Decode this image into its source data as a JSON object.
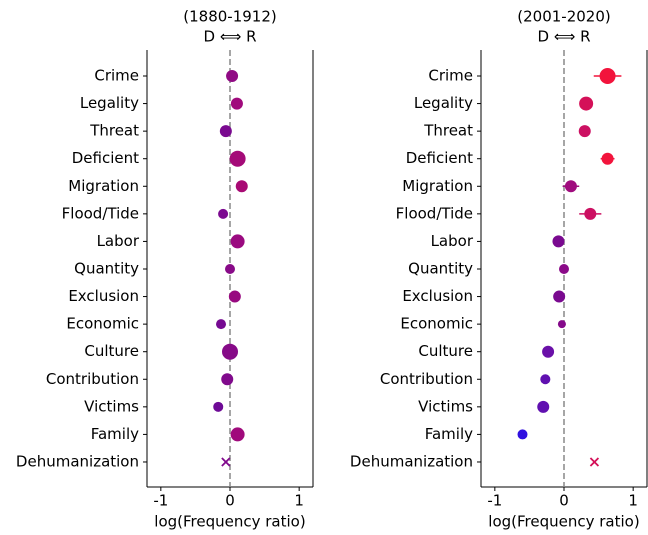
{
  "chart_data": [
    {
      "type": "scatter",
      "title": "(1880-1912)",
      "subtitle": "D ⟺ R",
      "xlabel": "log(Frequency ratio)",
      "categories": [
        "Crime",
        "Legality",
        "Threat",
        "Deficient",
        "Migration",
        "Flood/Tide",
        "Labor",
        "Quantity",
        "Exclusion",
        "Economic",
        "Culture",
        "Contribution",
        "Victims",
        "Family",
        "Dehumanization"
      ],
      "values": [
        0.03,
        0.1,
        -0.06,
        0.11,
        0.17,
        -0.1,
        0.11,
        0.0,
        0.07,
        -0.13,
        0.0,
        -0.04,
        -0.17,
        0.11,
        -0.06
      ],
      "errors": [
        0.03,
        0.04,
        0.03,
        0.05,
        0.03,
        0.03,
        0.04,
        0.03,
        0.04,
        0.03,
        0.1,
        0.04,
        0.03,
        0.04,
        0.02
      ],
      "sizes": [
        6,
        6,
        6,
        8,
        6,
        5,
        7,
        5,
        6,
        5,
        8,
        6,
        5,
        7,
        4
      ],
      "markers": [
        "o",
        "o",
        "o",
        "o",
        "o",
        "o",
        "o",
        "o",
        "o",
        "o",
        "o",
        "o",
        "o",
        "o",
        "x"
      ],
      "colors": [
        "#900a84",
        "#a00a7c",
        "#7a0a90",
        "#a40a78",
        "#a80a74",
        "#7c0a90",
        "#9a0a80",
        "#880a88",
        "#980a80",
        "#760a92",
        "#860a88",
        "#800a8c",
        "#6e0a96",
        "#a00a7c",
        "#800a8c"
      ],
      "xlim": [
        -1.2,
        1.2
      ],
      "xticks": [
        -1,
        0,
        1
      ]
    },
    {
      "type": "scatter",
      "title": "(2001-2020)",
      "subtitle": "D ⟺ R",
      "xlabel": "log(Frequency ratio)",
      "categories": [
        "Crime",
        "Legality",
        "Threat",
        "Deficient",
        "Migration",
        "Flood/Tide",
        "Labor",
        "Quantity",
        "Exclusion",
        "Economic",
        "Culture",
        "Contribution",
        "Victims",
        "Family",
        "Dehumanization"
      ],
      "values": [
        0.63,
        0.32,
        0.3,
        0.63,
        0.1,
        0.38,
        -0.08,
        0.0,
        -0.07,
        -0.03,
        -0.23,
        -0.27,
        -0.3,
        -0.6,
        0.44
      ],
      "errors": [
        0.2,
        0.07,
        0.02,
        0.1,
        0.12,
        0.16,
        0.06,
        0.02,
        0.03,
        0.02,
        0.03,
        0.06,
        0.06,
        0.02,
        0.02
      ],
      "sizes": [
        8,
        7,
        6,
        6,
        6,
        6,
        6,
        5,
        6,
        4,
        6,
        5,
        6,
        5,
        4
      ],
      "markers": [
        "o",
        "o",
        "o",
        "o",
        "o",
        "o",
        "o",
        "o",
        "o",
        "o",
        "o",
        "o",
        "o",
        "o",
        "x"
      ],
      "colors": [
        "#f2143c",
        "#d41058",
        "#cc1062",
        "#f2143c",
        "#a00c7e",
        "#cc1062",
        "#7a0a90",
        "#8a0a88",
        "#7a0a90",
        "#840a8a",
        "#6a10a8",
        "#6010b0",
        "#6010b0",
        "#3010e0",
        "#d41058"
      ],
      "xlim": [
        -1.2,
        1.2
      ],
      "xticks": [
        -1,
        0,
        1
      ]
    }
  ]
}
